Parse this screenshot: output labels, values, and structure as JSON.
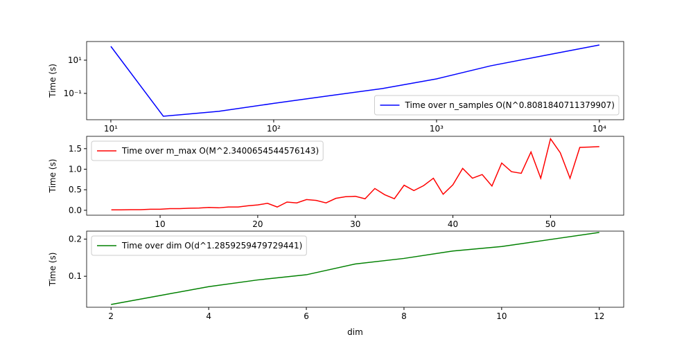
{
  "chart_data": [
    {
      "type": "line",
      "xscale": "log",
      "yscale": "log",
      "ylabel": "Time (s)",
      "x": [
        10,
        21,
        46,
        100,
        215,
        464,
        1000,
        2154,
        4641,
        10000
      ],
      "series": [
        {
          "name": "Time over n_samples O(N^0.8081840711379907)",
          "color": "#0000ff",
          "values": [
            68,
            0.0042,
            0.0083,
            0.025,
            0.07,
            0.195,
            0.75,
            4.6,
            19.5,
            82
          ]
        }
      ],
      "xlim": [
        7.1,
        14100
      ],
      "ylim": [
        0.0026,
        133
      ],
      "xticks": [
        {
          "value": 10,
          "label": "10¹"
        },
        {
          "value": 100,
          "label": "10²"
        },
        {
          "value": 1000,
          "label": "10³"
        },
        {
          "value": 10000,
          "label": "10⁴"
        }
      ],
      "yticks": [
        {
          "value": 0.1,
          "label": "10⁻¹"
        },
        {
          "value": 10,
          "label": "10¹"
        }
      ],
      "legend": "lower right"
    },
    {
      "type": "line",
      "ylabel": "Time (s)",
      "x": [
        5,
        6,
        7,
        8,
        9,
        10,
        11,
        12,
        13,
        14,
        15,
        16,
        17,
        18,
        19,
        20,
        21,
        22,
        23,
        24,
        25,
        26,
        27,
        28,
        29,
        30,
        31,
        32,
        33,
        34,
        35,
        36,
        37,
        38,
        39,
        40,
        41,
        42,
        43,
        44,
        45,
        46,
        47,
        48,
        49,
        50,
        51,
        52,
        53,
        54,
        55
      ],
      "series": [
        {
          "name": "Time over m_max O(M^2.3400654544576143)",
          "color": "#ff0000",
          "values": [
            0.01,
            0.01,
            0.015,
            0.015,
            0.025,
            0.025,
            0.04,
            0.04,
            0.05,
            0.055,
            0.07,
            0.06,
            0.08,
            0.08,
            0.11,
            0.13,
            0.17,
            0.08,
            0.2,
            0.18,
            0.26,
            0.24,
            0.18,
            0.29,
            0.33,
            0.34,
            0.28,
            0.53,
            0.38,
            0.28,
            0.61,
            0.48,
            0.6,
            0.78,
            0.39,
            0.62,
            1.02,
            0.78,
            0.87,
            0.59,
            1.15,
            0.94,
            0.9,
            1.42,
            0.78,
            1.74,
            1.4,
            0.78,
            1.53,
            1.54,
            1.55
          ]
        }
      ],
      "xlim": [
        2.47,
        57.5
      ],
      "ylim": [
        -0.12,
        1.8
      ],
      "xticks": [
        10,
        20,
        30,
        40,
        50
      ],
      "yticks": [
        {
          "value": 0,
          "label": "0.0"
        },
        {
          "value": 0.5,
          "label": "0.5"
        },
        {
          "value": 1,
          "label": "1.0"
        },
        {
          "value": 1.5,
          "label": "1.5"
        }
      ],
      "legend": "upper left"
    },
    {
      "type": "line",
      "ylabel": "Time (s)",
      "xlabel": "dim",
      "x": [
        2,
        3,
        4,
        5,
        6,
        7,
        8,
        9,
        10,
        11,
        12
      ],
      "series": [
        {
          "name": "Time over dim O(d^1.2859259479729441)",
          "color": "#008000",
          "values": [
            0.024,
            0.048,
            0.072,
            0.09,
            0.104,
            0.133,
            0.148,
            0.168,
            0.18,
            0.199,
            0.218
          ]
        }
      ],
      "xlim": [
        1.5,
        12.5
      ],
      "ylim": [
        0.0165,
        0.2215
      ],
      "xticks": [
        2,
        4,
        6,
        8,
        10,
        12
      ],
      "yticks": [
        0.1,
        0.2
      ],
      "legend": "upper left"
    }
  ]
}
